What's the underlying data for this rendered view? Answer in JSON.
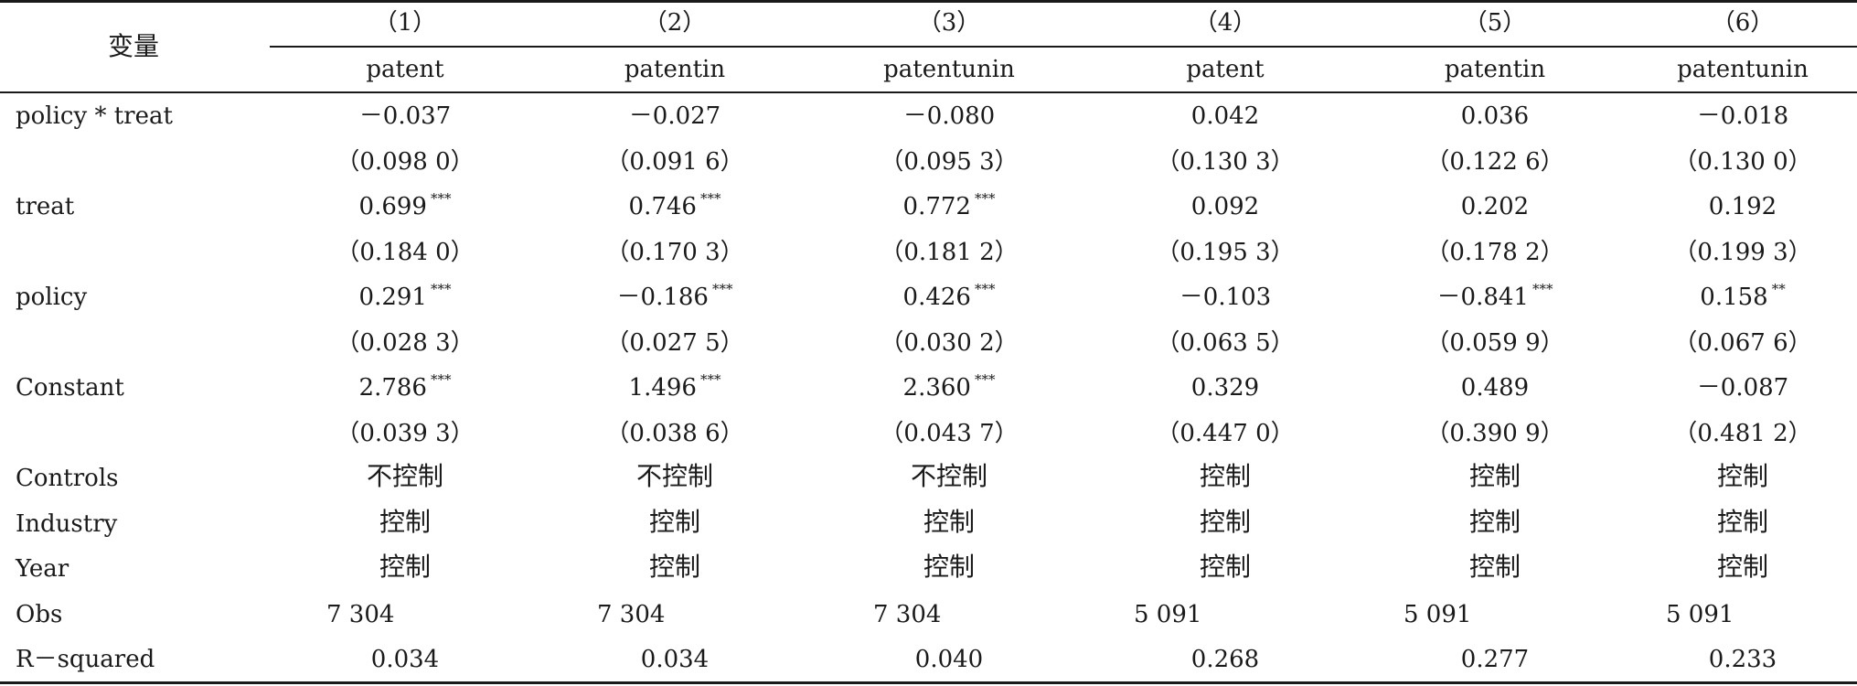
{
  "header": {
    "variable_label": "变量",
    "column_numbers": [
      "（1）",
      "（2）",
      "（3）",
      "（4）",
      "（5）",
      "（6）"
    ],
    "column_names": [
      "patent",
      "patentin",
      "patentunin",
      "patent",
      "patentin",
      "patentunin"
    ]
  },
  "rows": [
    {
      "label": "policy * treat",
      "coef": [
        "－0.037",
        "－0.027",
        "－0.080",
        "0.042",
        "0.036",
        "－0.018"
      ],
      "stars": [
        "",
        "",
        "",
        "",
        "",
        ""
      ],
      "se": [
        "（0.098 0）",
        "（0.091 6）",
        "（0.095 3）",
        "（0.130 3）",
        "（0.122 6）",
        "（0.130 0）"
      ]
    },
    {
      "label": "treat",
      "coef": [
        "0.699",
        "0.746",
        "0.772",
        "0.092",
        "0.202",
        "0.192"
      ],
      "stars": [
        "***",
        "***",
        "***",
        "",
        "",
        ""
      ],
      "se": [
        "（0.184 0）",
        "（0.170 3）",
        "（0.181 2）",
        "（0.195 3）",
        "（0.178 2）",
        "（0.199 3）"
      ]
    },
    {
      "label": "policy",
      "coef": [
        "0.291",
        "－0.186",
        "0.426",
        "－0.103",
        "－0.841",
        "0.158"
      ],
      "stars": [
        "***",
        "***",
        "***",
        "",
        "***",
        "**"
      ],
      "se": [
        "（0.028 3）",
        "（0.027 5）",
        "（0.030 2）",
        "（0.063 5）",
        "（0.059 9）",
        "（0.067 6）"
      ]
    },
    {
      "label": "Constant",
      "coef": [
        "2.786",
        "1.496",
        "2.360",
        "0.329",
        "0.489",
        "－0.087"
      ],
      "stars": [
        "***",
        "***",
        "***",
        "",
        "",
        ""
      ],
      "se": [
        "（0.039 3）",
        "（0.038 6）",
        "（0.043 7）",
        "（0.447 0）",
        "（0.390 9）",
        "（0.481 2）"
      ]
    }
  ],
  "controls": [
    {
      "label": "Controls",
      "values": [
        "不控制",
        "不控制",
        "不控制",
        "控制",
        "控制",
        "控制"
      ]
    },
    {
      "label": "Industry",
      "values": [
        "控制",
        "控制",
        "控制",
        "控制",
        "控制",
        "控制"
      ]
    },
    {
      "label": "Year",
      "values": [
        "控制",
        "控制",
        "控制",
        "控制",
        "控制",
        "控制"
      ]
    }
  ],
  "obs": {
    "label": "Obs",
    "values": [
      "7 304",
      "7 304",
      "7 304",
      "5 091",
      "5 091",
      "5 091"
    ]
  },
  "r2": {
    "label": "R－squared",
    "values": [
      "0.034",
      "0.034",
      "0.040",
      "0.268",
      "0.277",
      "0.233"
    ]
  }
}
